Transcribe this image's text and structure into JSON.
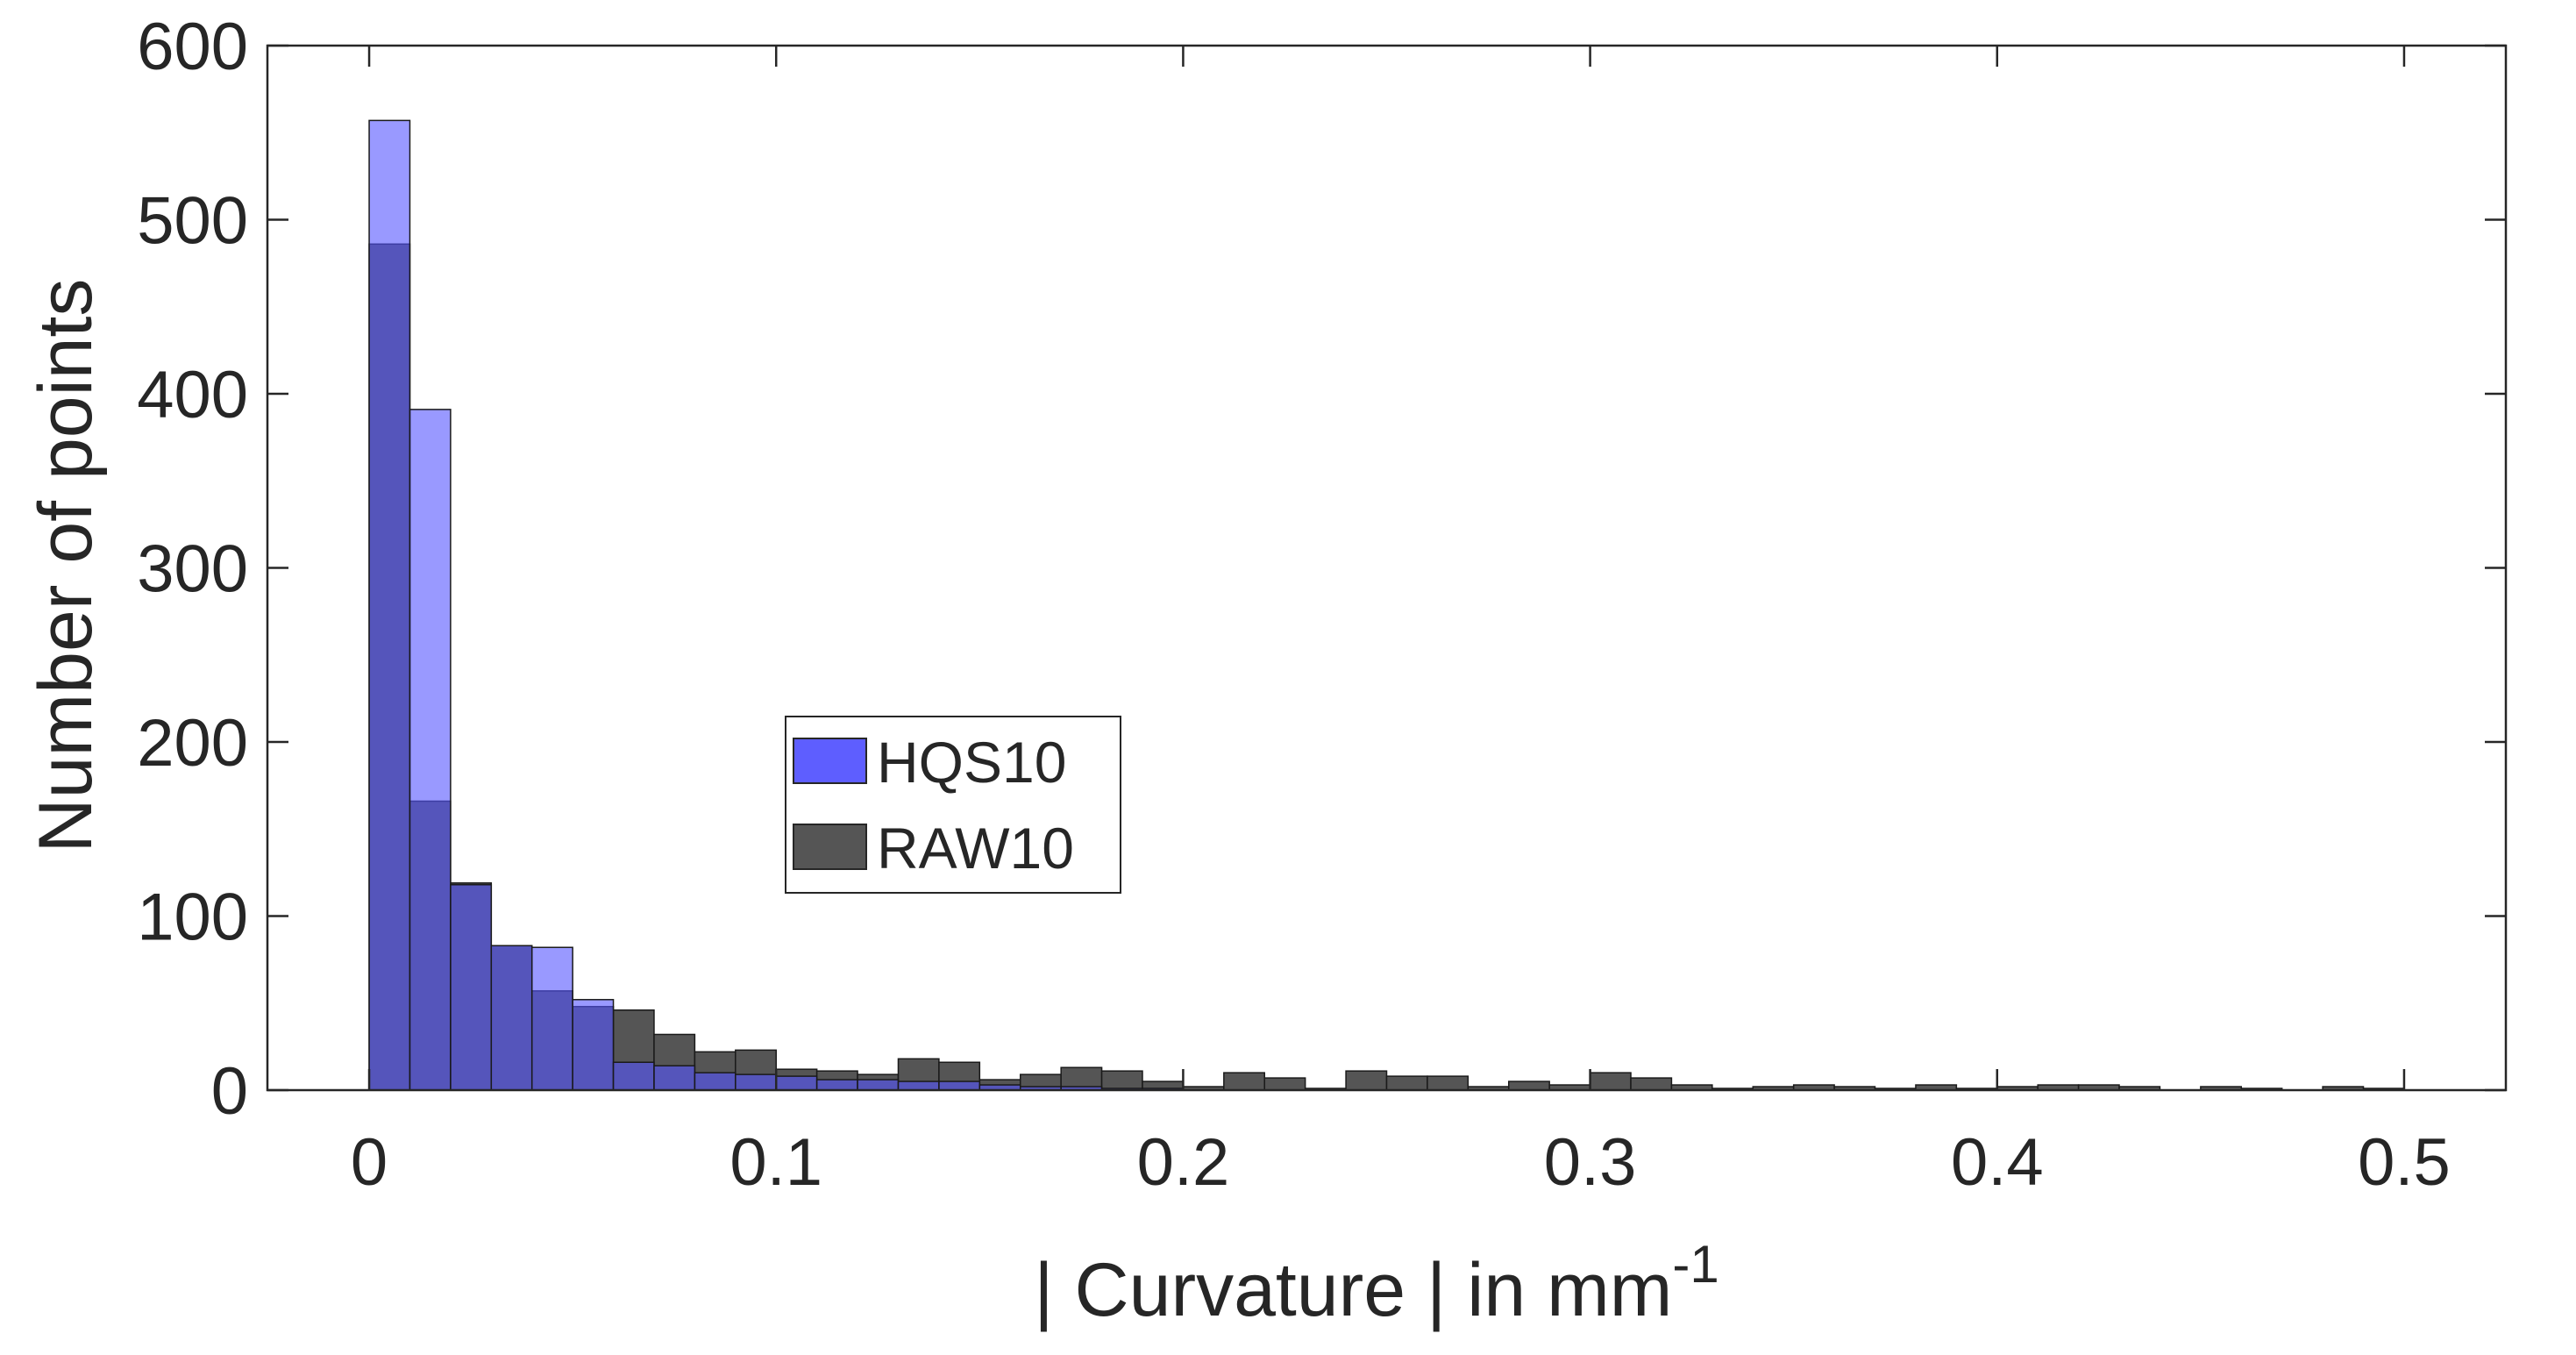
{
  "chart_data": {
    "type": "bar",
    "subtype": "overlaid-histogram",
    "title": "",
    "xlabel": "| Curvature | in mm",
    "xlabel_superscript": "-1",
    "ylabel": "Number of points",
    "xlim": [
      -0.025,
      0.525
    ],
    "ylim": [
      0,
      600
    ],
    "xticks": [
      0,
      0.1,
      0.2,
      0.3,
      0.4,
      0.5
    ],
    "xtick_labels": [
      "0",
      "0.1",
      "0.2",
      "0.3",
      "0.4",
      "0.5"
    ],
    "yticks": [
      0,
      100,
      200,
      300,
      400,
      500,
      600
    ],
    "ytick_labels": [
      "0",
      "100",
      "200",
      "300",
      "400",
      "500",
      "600"
    ],
    "bin_width": 0.01,
    "bin_edges_start": 0,
    "grid": false,
    "legend_position": "center-left",
    "series": [
      {
        "name": "HQS10",
        "color": "#5555ff",
        "values": [
          557,
          391,
          118,
          83,
          82,
          52,
          16,
          14,
          10,
          9,
          8,
          6,
          6,
          5,
          5,
          3,
          2,
          2,
          1,
          1,
          0,
          0,
          0,
          0,
          0,
          0,
          0,
          0,
          0,
          0,
          0,
          0,
          0,
          0,
          0,
          0,
          0,
          0,
          0,
          0,
          0,
          0,
          0,
          0,
          0,
          0,
          0,
          0,
          0,
          0
        ]
      },
      {
        "name": "RAW10",
        "color": "#555555",
        "values": [
          486,
          166,
          119,
          83,
          57,
          48,
          46,
          32,
          22,
          23,
          12,
          11,
          9,
          18,
          16,
          6,
          9,
          13,
          11,
          5,
          2,
          10,
          7,
          1,
          11,
          8,
          8,
          2,
          5,
          3,
          10,
          7,
          3,
          1,
          2,
          3,
          2,
          1,
          3,
          1,
          2,
          3,
          3,
          2,
          0,
          2,
          1,
          0,
          2,
          1
        ]
      }
    ]
  }
}
